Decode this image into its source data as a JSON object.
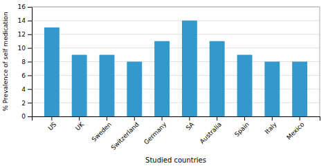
{
  "chart_data": {
    "type": "bar",
    "categories": [
      "US",
      "UK",
      "Sweden",
      "Switzerland",
      "Germany",
      "SA",
      "Australia",
      "Spain",
      "Italy",
      "Mexico"
    ],
    "values": [
      13,
      9,
      9,
      8,
      11,
      14,
      11,
      9,
      8,
      8
    ],
    "color": "#3399cc",
    "xlabel": "Studied countries",
    "ylabel": "% Prevalence of self medication",
    "ylim": [
      0,
      16
    ],
    "yticks": [
      0,
      2,
      4,
      6,
      8,
      10,
      12,
      14,
      16
    ],
    "grid": true
  }
}
